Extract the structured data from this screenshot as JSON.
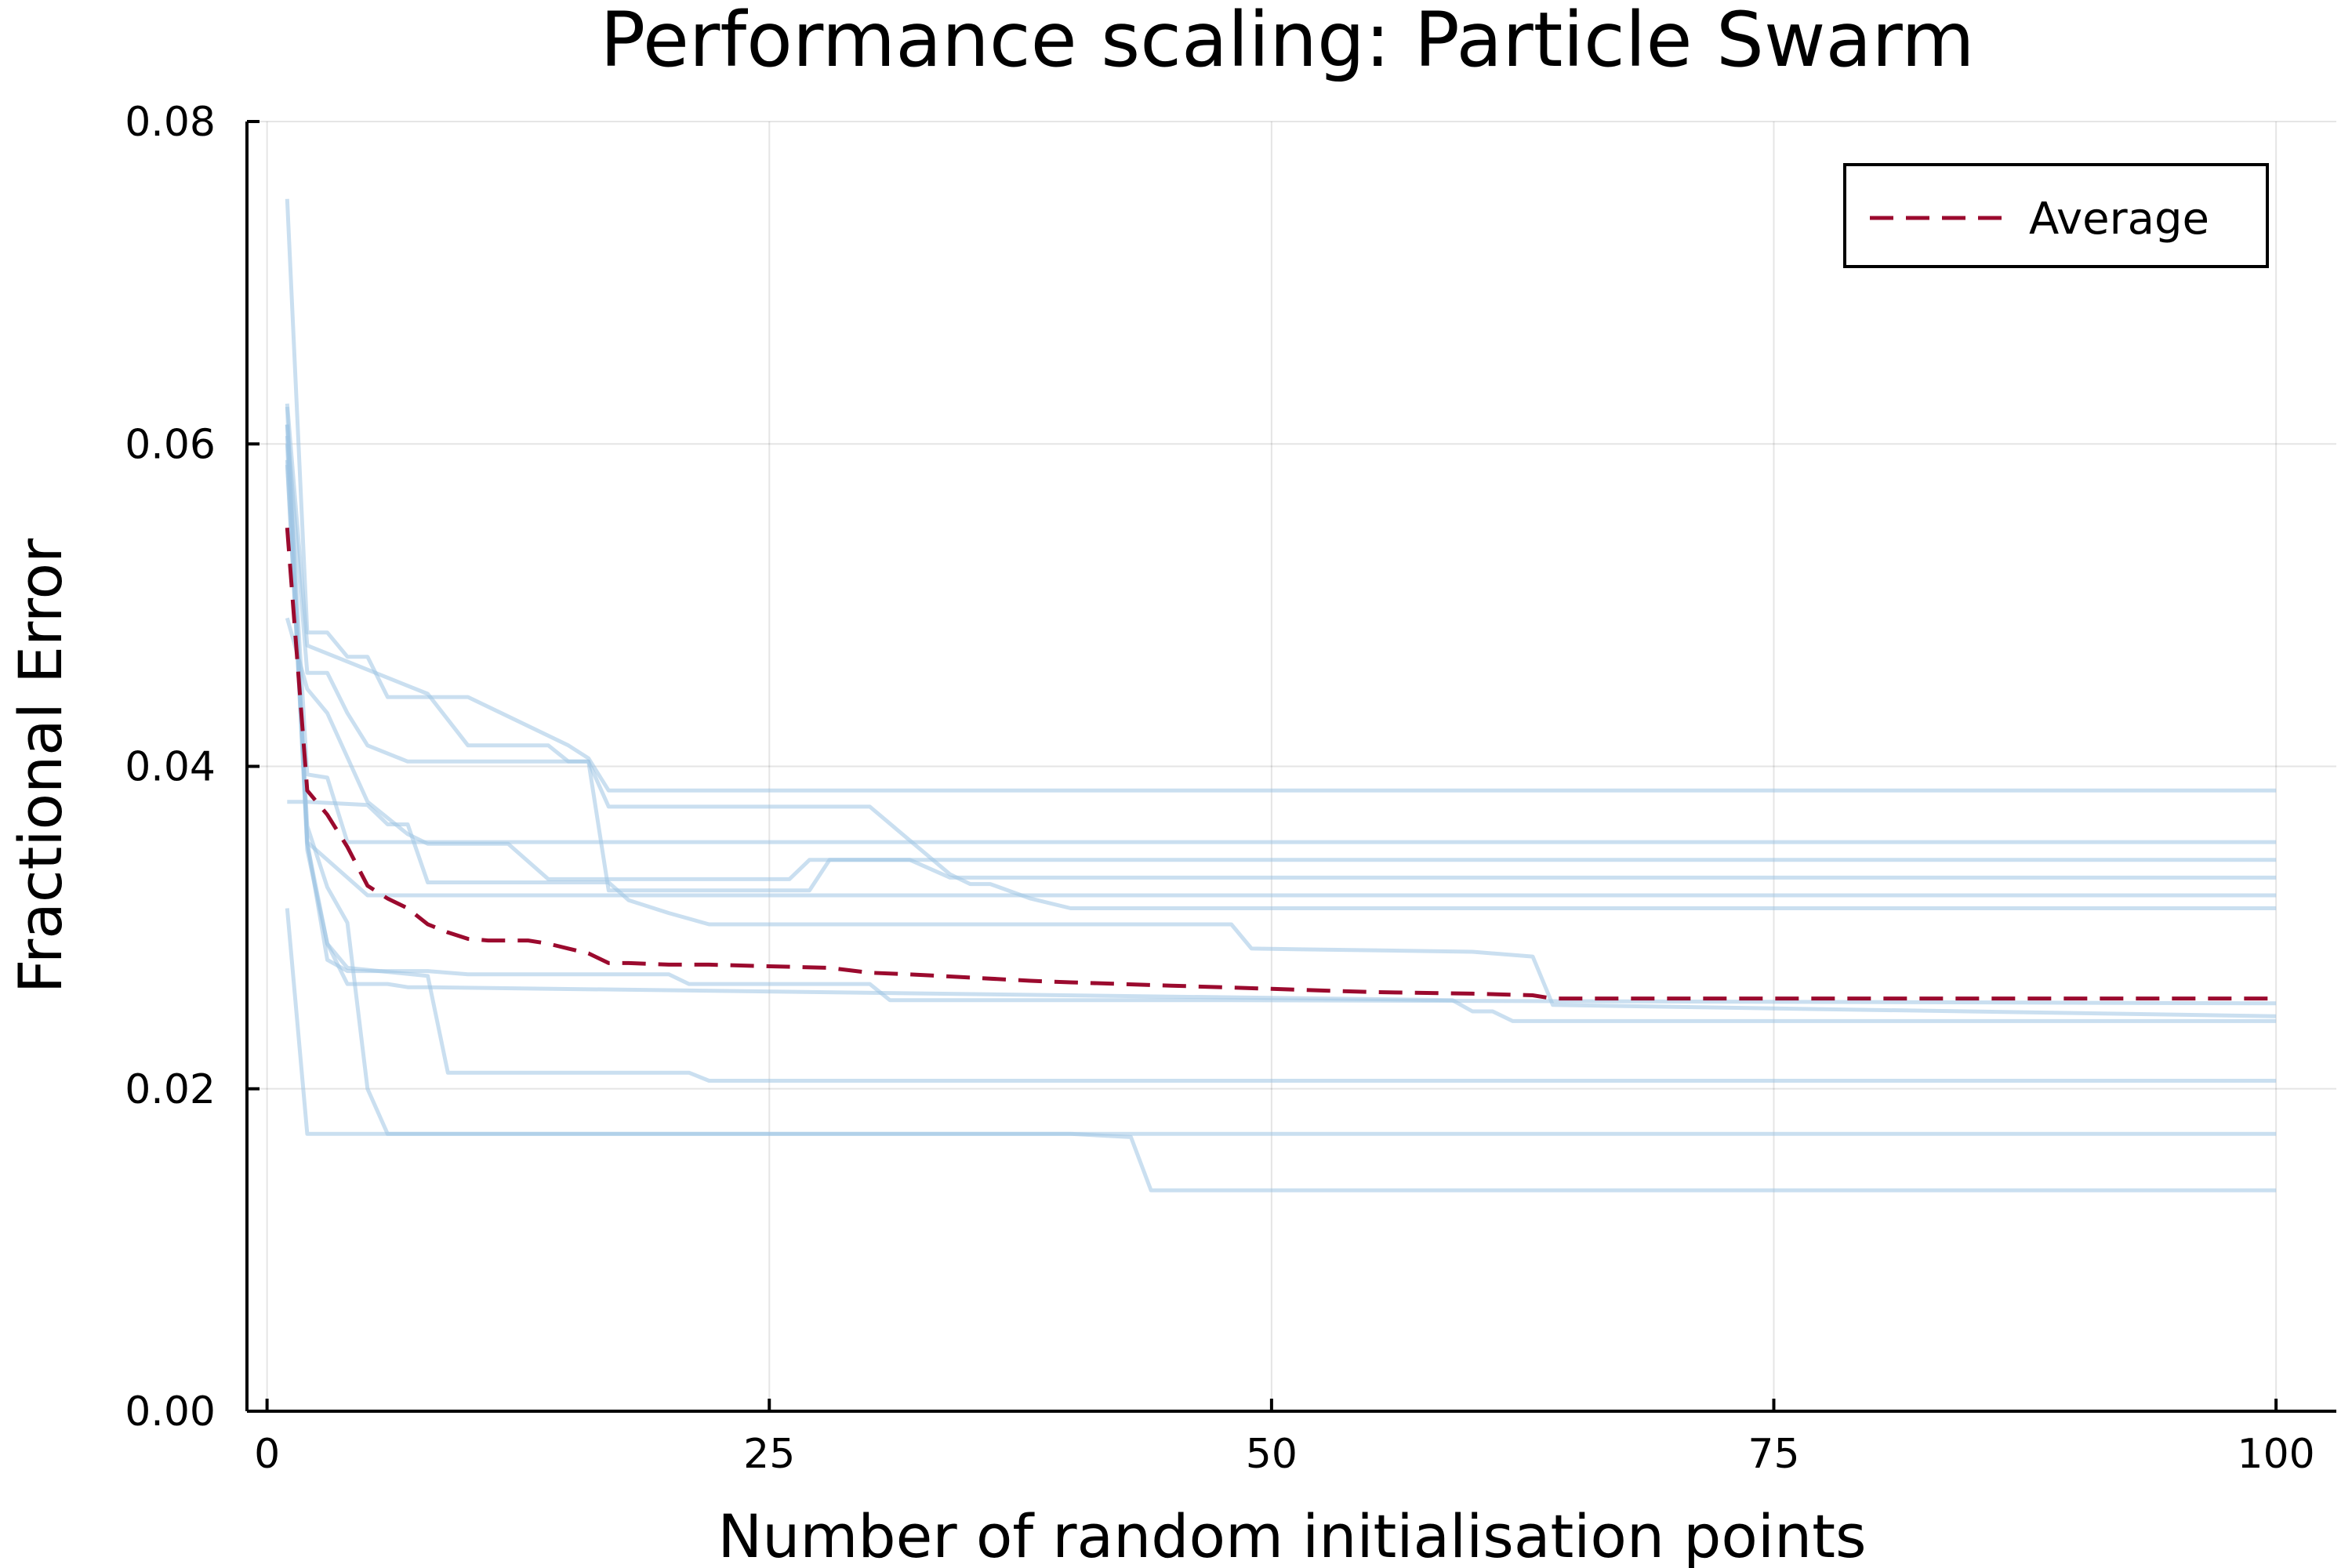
{
  "chart_data": {
    "type": "line",
    "title": "Performance scaling: Particle Swarm",
    "xlabel": "Number of random initialisation points",
    "ylabel": "Fractional Error",
    "xlim": [
      -1,
      103
    ],
    "ylim": [
      0,
      0.08
    ],
    "xticks": [
      0,
      25,
      50,
      75,
      100
    ],
    "xtick_labels": [
      "0",
      "25",
      "50",
      "75",
      "100"
    ],
    "yticks": [
      0,
      0.02,
      0.04,
      0.06,
      0.08
    ],
    "ytick_labels": [
      "0.00",
      "0.02",
      "0.04",
      "0.06",
      "0.08"
    ],
    "grid": true,
    "legend_position": "top-right",
    "colors": {
      "trials": "#9ec5e3",
      "average": "#9b0a2e"
    },
    "trials": [
      {
        "x": [
          1,
          2,
          3,
          4,
          5,
          6,
          10,
          15,
          16,
          17,
          100
        ],
        "y": [
          0.0752,
          0.0483,
          0.0483,
          0.0468,
          0.0468,
          0.0443,
          0.0443,
          0.0413,
          0.0405,
          0.0385,
          0.0385
        ]
      },
      {
        "x": [
          1,
          2,
          8,
          10,
          14,
          15,
          16,
          17,
          27,
          28,
          32,
          34,
          100
        ],
        "y": [
          0.0625,
          0.0475,
          0.0445,
          0.0413,
          0.0413,
          0.0403,
          0.0403,
          0.0323,
          0.0323,
          0.0342,
          0.0342,
          0.0331,
          0.0331
        ]
      },
      {
        "x": [
          1,
          2,
          3,
          4,
          5,
          7,
          16,
          17,
          30,
          34,
          35,
          36,
          38,
          40,
          100
        ],
        "y": [
          0.0612,
          0.0458,
          0.0458,
          0.0433,
          0.0413,
          0.0403,
          0.0403,
          0.0375,
          0.0375,
          0.0333,
          0.0327,
          0.0327,
          0.0318,
          0.0312,
          0.0312
        ]
      },
      {
        "x": [
          1,
          2,
          3,
          5,
          7,
          8,
          12,
          14,
          15,
          20,
          26,
          27,
          100
        ],
        "y": [
          0.0492,
          0.0448,
          0.0433,
          0.0378,
          0.0358,
          0.0352,
          0.0352,
          0.033,
          0.033,
          0.033,
          0.033,
          0.0342,
          0.0342
        ]
      },
      {
        "x": [
          1,
          2,
          5,
          6,
          7,
          8,
          17,
          18,
          20,
          22,
          28,
          34,
          35,
          48,
          49,
          60,
          63,
          64,
          100
        ],
        "y": [
          0.0378,
          0.0378,
          0.0376,
          0.0364,
          0.0364,
          0.0328,
          0.0328,
          0.0317,
          0.0309,
          0.0302,
          0.0302,
          0.0302,
          0.0302,
          0.0302,
          0.0287,
          0.0285,
          0.0282,
          0.0252,
          0.0245
        ]
      },
      {
        "x": [
          1,
          2,
          3,
          4,
          100
        ],
        "y": [
          0.0605,
          0.0395,
          0.0393,
          0.0353,
          0.0353
        ]
      },
      {
        "x": [
          1,
          2,
          5,
          100
        ],
        "y": [
          0.0612,
          0.0353,
          0.032,
          0.032
        ]
      },
      {
        "x": [
          1,
          2,
          3,
          4,
          8,
          10,
          20,
          21,
          30,
          31,
          48,
          100
        ],
        "y": [
          0.059,
          0.0353,
          0.028,
          0.0273,
          0.0273,
          0.0271,
          0.0271,
          0.0265,
          0.0265,
          0.0255,
          0.0255,
          0.0253
        ]
      },
      {
        "x": [
          1,
          2,
          3,
          4,
          8,
          9,
          21,
          22,
          100
        ],
        "y": [
          0.06,
          0.0348,
          0.029,
          0.0275,
          0.027,
          0.021,
          0.021,
          0.0205,
          0.0205
        ]
      },
      {
        "x": [
          1,
          2,
          3,
          4,
          5,
          6,
          7,
          8,
          59,
          60,
          61,
          62,
          100
        ],
        "y": [
          0.0623,
          0.0352,
          0.029,
          0.0265,
          0.0265,
          0.0265,
          0.0263,
          0.0263,
          0.0255,
          0.0248,
          0.0248,
          0.0242,
          0.0242
        ]
      },
      {
        "x": [
          1,
          2,
          3,
          4,
          5,
          6,
          7,
          8,
          20,
          21,
          100
        ],
        "y": [
          0.0587,
          0.0363,
          0.0325,
          0.0303,
          0.02,
          0.0172,
          0.0172,
          0.0172,
          0.0172,
          0.0172,
          0.0172
        ]
      },
      {
        "x": [
          1,
          2,
          40,
          43,
          44,
          100
        ],
        "y": [
          0.0312,
          0.0172,
          0.0172,
          0.017,
          0.0137,
          0.0137
        ]
      }
    ],
    "series": [
      {
        "name": "Average",
        "x": [
          1,
          2,
          3,
          4,
          5,
          6,
          7,
          8,
          9,
          10,
          11,
          12,
          13,
          14,
          15,
          16,
          17,
          18,
          20,
          22,
          25,
          28,
          30,
          32,
          35,
          38,
          40,
          45,
          50,
          55,
          60,
          63,
          64,
          100
        ],
        "y": [
          0.0548,
          0.0385,
          0.037,
          0.035,
          0.0326,
          0.0318,
          0.0312,
          0.0302,
          0.0297,
          0.0293,
          0.0292,
          0.0292,
          0.0292,
          0.029,
          0.0287,
          0.0284,
          0.0278,
          0.0278,
          0.0277,
          0.0277,
          0.0276,
          0.0275,
          0.0272,
          0.0271,
          0.0269,
          0.0267,
          0.0266,
          0.0264,
          0.0262,
          0.026,
          0.0259,
          0.0258,
          0.0256,
          0.0256
        ]
      }
    ]
  }
}
